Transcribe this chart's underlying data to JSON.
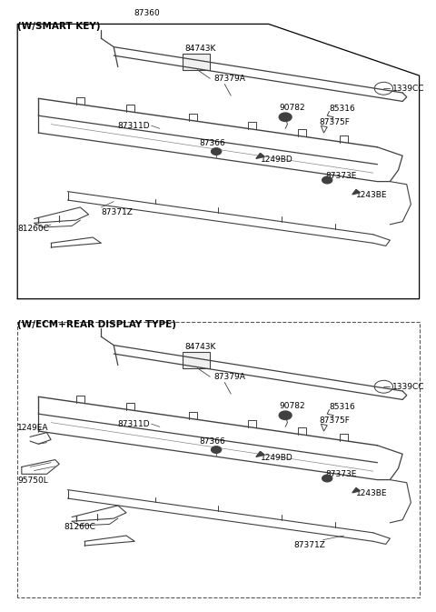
{
  "bg_color": "#ffffff",
  "line_color": "#404040",
  "text_color": "#000000",
  "panel1_title": "(W/SMART KEY)",
  "panel2_title": "(W/ECM+REAR DISPLAY TYPE)",
  "panel1_label_above": "87360",
  "font_size_label": 6.5,
  "font_size_title": 7.5
}
